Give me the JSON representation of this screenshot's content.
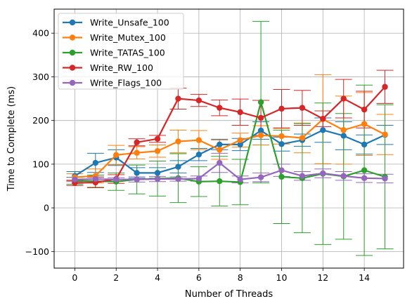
{
  "chart_data": {
    "type": "line",
    "title": "",
    "xlabel": "Number of Threads",
    "ylabel": "Time to Complete (ms)",
    "xlim": [
      -1.0,
      15.9
    ],
    "ylim": [
      -138,
      455
    ],
    "xticks": [
      0,
      2,
      4,
      6,
      8,
      10,
      12,
      14
    ],
    "xtick_labels": [
      "0",
      "2",
      "4",
      "6",
      "8",
      "10",
      "12",
      "14"
    ],
    "yticks": [
      -100,
      0,
      100,
      200,
      300,
      400
    ],
    "ytick_labels": [
      "−100",
      "0",
      "100",
      "200",
      "300",
      "400"
    ],
    "grid": true,
    "legend_position": "top-left",
    "x": [
      0,
      1,
      2,
      3,
      4,
      5,
      6,
      7,
      8,
      9,
      10,
      11,
      12,
      13,
      14,
      15
    ],
    "series": [
      {
        "name": "Write_Unsafe_100",
        "color": "#1f77b4",
        "values": [
          73,
          103,
          115,
          80,
          80,
          94,
          122,
          145,
          145,
          177,
          146,
          155,
          178,
          165,
          145,
          167
        ],
        "errors": [
          10,
          22,
          18,
          12,
          12,
          14,
          14,
          12,
          14,
          20,
          16,
          14,
          28,
          32,
          22,
          22
        ]
      },
      {
        "name": "Write_Mutex_100",
        "color": "#ff7f0e",
        "values": [
          70,
          73,
          121,
          126,
          130,
          152,
          155,
          133,
          155,
          166,
          164,
          160,
          203,
          178,
          192,
          168
        ],
        "errors": [
          8,
          16,
          22,
          14,
          14,
          26,
          22,
          22,
          16,
          22,
          18,
          34,
          102,
          78,
          72,
          46
        ]
      },
      {
        "name": "Write_TATAS_100",
        "color": "#2ca02c",
        "values": [
          62,
          61,
          60,
          65,
          67,
          68,
          60,
          61,
          59,
          242,
          71,
          68,
          78,
          72,
          86,
          71
        ],
        "errors": [
          8,
          14,
          20,
          33,
          40,
          56,
          34,
          57,
          52,
          185,
          107,
          125,
          162,
          144,
          195,
          165
        ]
      },
      {
        "name": "Write_RW_100",
        "color": "#d62728",
        "values": [
          57,
          58,
          66,
          150,
          158,
          250,
          246,
          229,
          219,
          206,
          227,
          229,
          204,
          250,
          225,
          277
        ],
        "errors": [
          6,
          12,
          10,
          8,
          8,
          24,
          14,
          18,
          30,
          40,
          44,
          40,
          18,
          44,
          42,
          38
        ]
      },
      {
        "name": "Write_Flags_100",
        "color": "#9467bd",
        "values": [
          65,
          66,
          65,
          65,
          66,
          66,
          67,
          103,
          65,
          70,
          86,
          73,
          79,
          73,
          68,
          67
        ],
        "errors": [
          5,
          5,
          4,
          6,
          6,
          5,
          6,
          22,
          8,
          10,
          14,
          10,
          10,
          10,
          10,
          10
        ]
      }
    ]
  }
}
